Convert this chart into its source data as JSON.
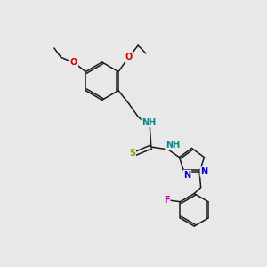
{
  "bg_color": "#e8e8e8",
  "bond_color": "#1a1a1a",
  "atom_colors": {
    "O": "#cc0000",
    "N": "#0000cc",
    "S": "#999900",
    "F": "#cc00cc",
    "NH": "#008888",
    "C": "#1a1a1a"
  },
  "font_size": 7.0
}
